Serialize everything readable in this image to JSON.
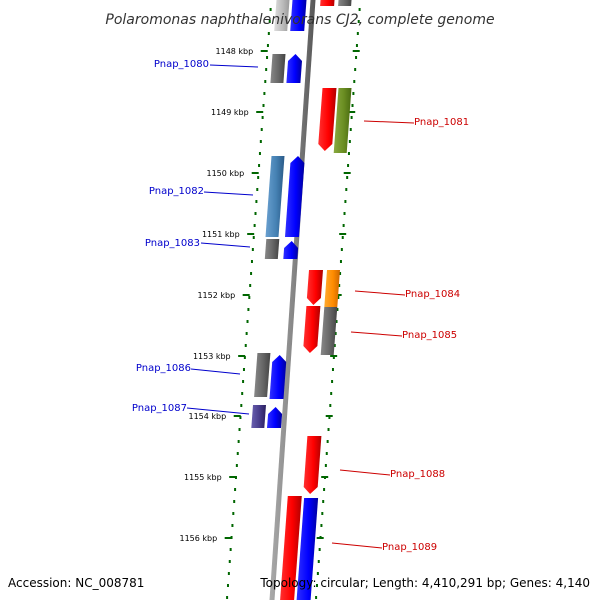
{
  "title": "Polaromonas naphthalenivorans CJ2, complete genome",
  "accession": "Accession: NC_008781",
  "topology": "Topology: circular; Length: 4,410,291 bp; Genes: 4,140",
  "ticks": [
    "1148 kbp",
    "1149 kbp",
    "1150 kbp",
    "1151 kbp",
    "1152 kbp",
    "1153 kbp",
    "1154 kbp",
    "1155 kbp",
    "1156 kbp"
  ],
  "genes": [
    {
      "name": "Pnap_1080",
      "strand": "left",
      "color": "#0000cc"
    },
    {
      "name": "Pnap_1081",
      "strand": "right",
      "color": "#cc0000"
    },
    {
      "name": "Pnap_1082",
      "strand": "left",
      "color": "#0000cc"
    },
    {
      "name": "Pnap_1083",
      "strand": "left",
      "color": "#0000cc"
    },
    {
      "name": "Pnap_1084",
      "strand": "right",
      "color": "#cc0000"
    },
    {
      "name": "Pnap_1085",
      "strand": "right",
      "color": "#cc0000"
    },
    {
      "name": "Pnap_1086",
      "strand": "left",
      "color": "#0000cc"
    },
    {
      "name": "Pnap_1087",
      "strand": "left",
      "color": "#0000cc"
    },
    {
      "name": "Pnap_1088",
      "strand": "right",
      "color": "#cc0000"
    },
    {
      "name": "Pnap_1089",
      "strand": "right",
      "color": "#cc0000"
    }
  ],
  "colors": {
    "forward_strand": "#ff0000",
    "reverse_strand": "#0000ff",
    "tick_marks": "#006600",
    "backbone": "#888888",
    "cog_gray": "#666666",
    "cog_green": "#6b8e23",
    "cog_orange": "#ff8c00",
    "cog_steelblue": "#4682b4",
    "cog_slate": "#483d8b"
  }
}
